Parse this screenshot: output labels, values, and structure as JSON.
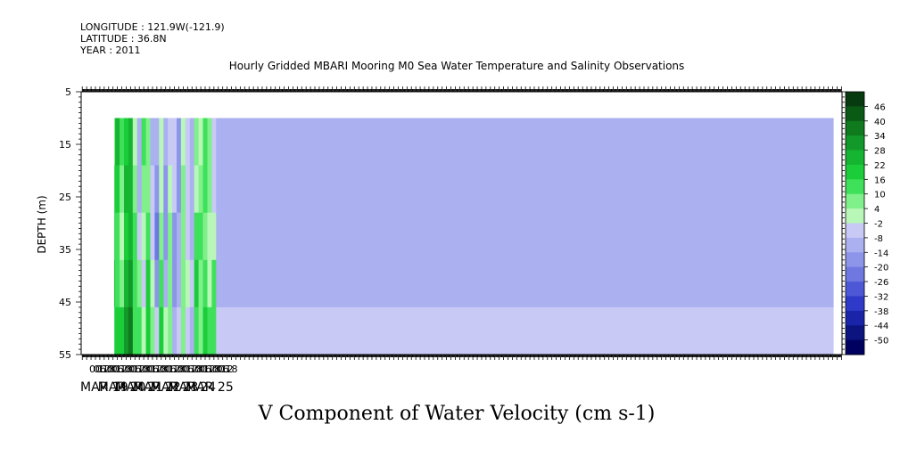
{
  "header": {
    "longitude": "LONGITUDE : 121.9W(-121.9)",
    "latitude": "LATITUDE : 36.8N",
    "year": "YEAR : 2011"
  },
  "chart_data": {
    "type": "heatmap",
    "title": "Hourly Gridded MBARI Mooring M0 Sea Water Temperature and Salinity Observations",
    "xlabel": "V Component of Water Velocity (cm s-1)",
    "ylabel": "DEPTH (m)",
    "ylim": [
      55,
      5
    ],
    "y_ticks": [
      5,
      15,
      25,
      35,
      45,
      55
    ],
    "data_depth_range": [
      10,
      55
    ],
    "hour_ticks": [
      "00",
      "06",
      "12",
      "18",
      "00",
      "06",
      "12",
      "18",
      "00",
      "06",
      "12",
      "18",
      "00",
      "06",
      "12",
      "18",
      "00",
      "06",
      "12",
      "18",
      "00",
      "06",
      "12",
      "18",
      "00",
      "06",
      "12",
      "18",
      "00",
      "06",
      "12",
      "18"
    ],
    "date_labels": [
      "MAR 19",
      "MAR 20",
      "MAR 21",
      "MAR 22",
      "MAR 23",
      "MAR 24",
      "MAR 25"
    ],
    "colorbar_levels": [
      46,
      40,
      34,
      28,
      22,
      16,
      10,
      4,
      -2,
      -8,
      -14,
      -20,
      -26,
      -32,
      -38,
      -44,
      -50
    ],
    "colorbar_colors": [
      "#083a10",
      "#0a5a16",
      "#0f7a1e",
      "#12992a",
      "#16b531",
      "#1bcd39",
      "#3fe05a",
      "#7ff08a",
      "#b8f7b8",
      "#c9c9f6",
      "#aab0f0",
      "#8c95ea",
      "#6e78e0",
      "#4d58d6",
      "#2f3ac8",
      "#1a24a8",
      "#0c1480",
      "#000060"
    ],
    "columns": [
      {
        "hour": -6,
        "v": [
          2,
          0,
          -2,
          0,
          2
        ]
      },
      {
        "hour": 0,
        "v": [
          14,
          16,
          14,
          12,
          10
        ]
      },
      {
        "hour": 6,
        "v": [
          16,
          18,
          14,
          10,
          6
        ]
      },
      {
        "hour": 12,
        "v": [
          -8,
          -4,
          2,
          4,
          2
        ]
      },
      {
        "hour": 18,
        "v": [
          -16,
          -20,
          -8,
          4,
          12
        ]
      },
      {
        "hour": 24,
        "v": [
          10,
          12,
          16,
          18,
          16
        ]
      },
      {
        "hour": 30,
        "v": [
          26,
          22,
          14,
          12,
          20
        ]
      },
      {
        "hour": 36,
        "v": [
          14,
          8,
          4,
          10,
          18
        ]
      },
      {
        "hour": 42,
        "v": [
          20,
          24,
          22,
          26,
          30
        ]
      },
      {
        "hour": 48,
        "v": [
          28,
          26,
          26,
          30,
          36
        ]
      },
      {
        "hour": 54,
        "v": [
          4,
          10,
          16,
          14,
          12
        ]
      },
      {
        "hour": 60,
        "v": [
          -8,
          -10,
          -4,
          10,
          16
        ]
      },
      {
        "hour": 66,
        "v": [
          16,
          8,
          2,
          -2,
          4
        ]
      },
      {
        "hour": 72,
        "v": [
          6,
          10,
          12,
          18,
          20
        ]
      },
      {
        "hour": 78,
        "v": [
          -10,
          -4,
          -2,
          2,
          6
        ]
      },
      {
        "hour": 84,
        "v": [
          -8,
          -14,
          -20,
          -16,
          -6
        ]
      },
      {
        "hour": 90,
        "v": [
          2,
          4,
          8,
          16,
          18
        ]
      },
      {
        "hour": 96,
        "v": [
          -10,
          -14,
          -14,
          -10,
          2
        ]
      },
      {
        "hour": 102,
        "v": [
          -6,
          0,
          6,
          10,
          8
        ]
      },
      {
        "hour": 108,
        "v": [
          -4,
          -6,
          -14,
          -18,
          -12
        ]
      },
      {
        "hour": 114,
        "v": [
          -16,
          -14,
          -10,
          -12,
          -6
        ]
      },
      {
        "hour": 120,
        "v": [
          4,
          6,
          6,
          8,
          10
        ]
      },
      {
        "hour": 126,
        "v": [
          -6,
          -4,
          -2,
          0,
          -2
        ]
      },
      {
        "hour": 132,
        "v": [
          -10,
          -12,
          -8,
          -6,
          -10
        ]
      },
      {
        "hour": 138,
        "v": [
          8,
          4,
          14,
          18,
          14
        ]
      },
      {
        "hour": 144,
        "v": [
          4,
          10,
          12,
          10,
          8
        ]
      },
      {
        "hour": 150,
        "v": [
          12,
          14,
          10,
          12,
          18
        ]
      },
      {
        "hour": 156,
        "v": [
          10,
          8,
          2,
          4,
          14
        ]
      },
      {
        "hour": 162,
        "v": [
          -6,
          -4,
          4,
          12,
          16
        ]
      },
      {
        "hour": 168,
        "v": [
          -10,
          -12,
          -10,
          -8,
          -6
        ]
      }
    ]
  }
}
